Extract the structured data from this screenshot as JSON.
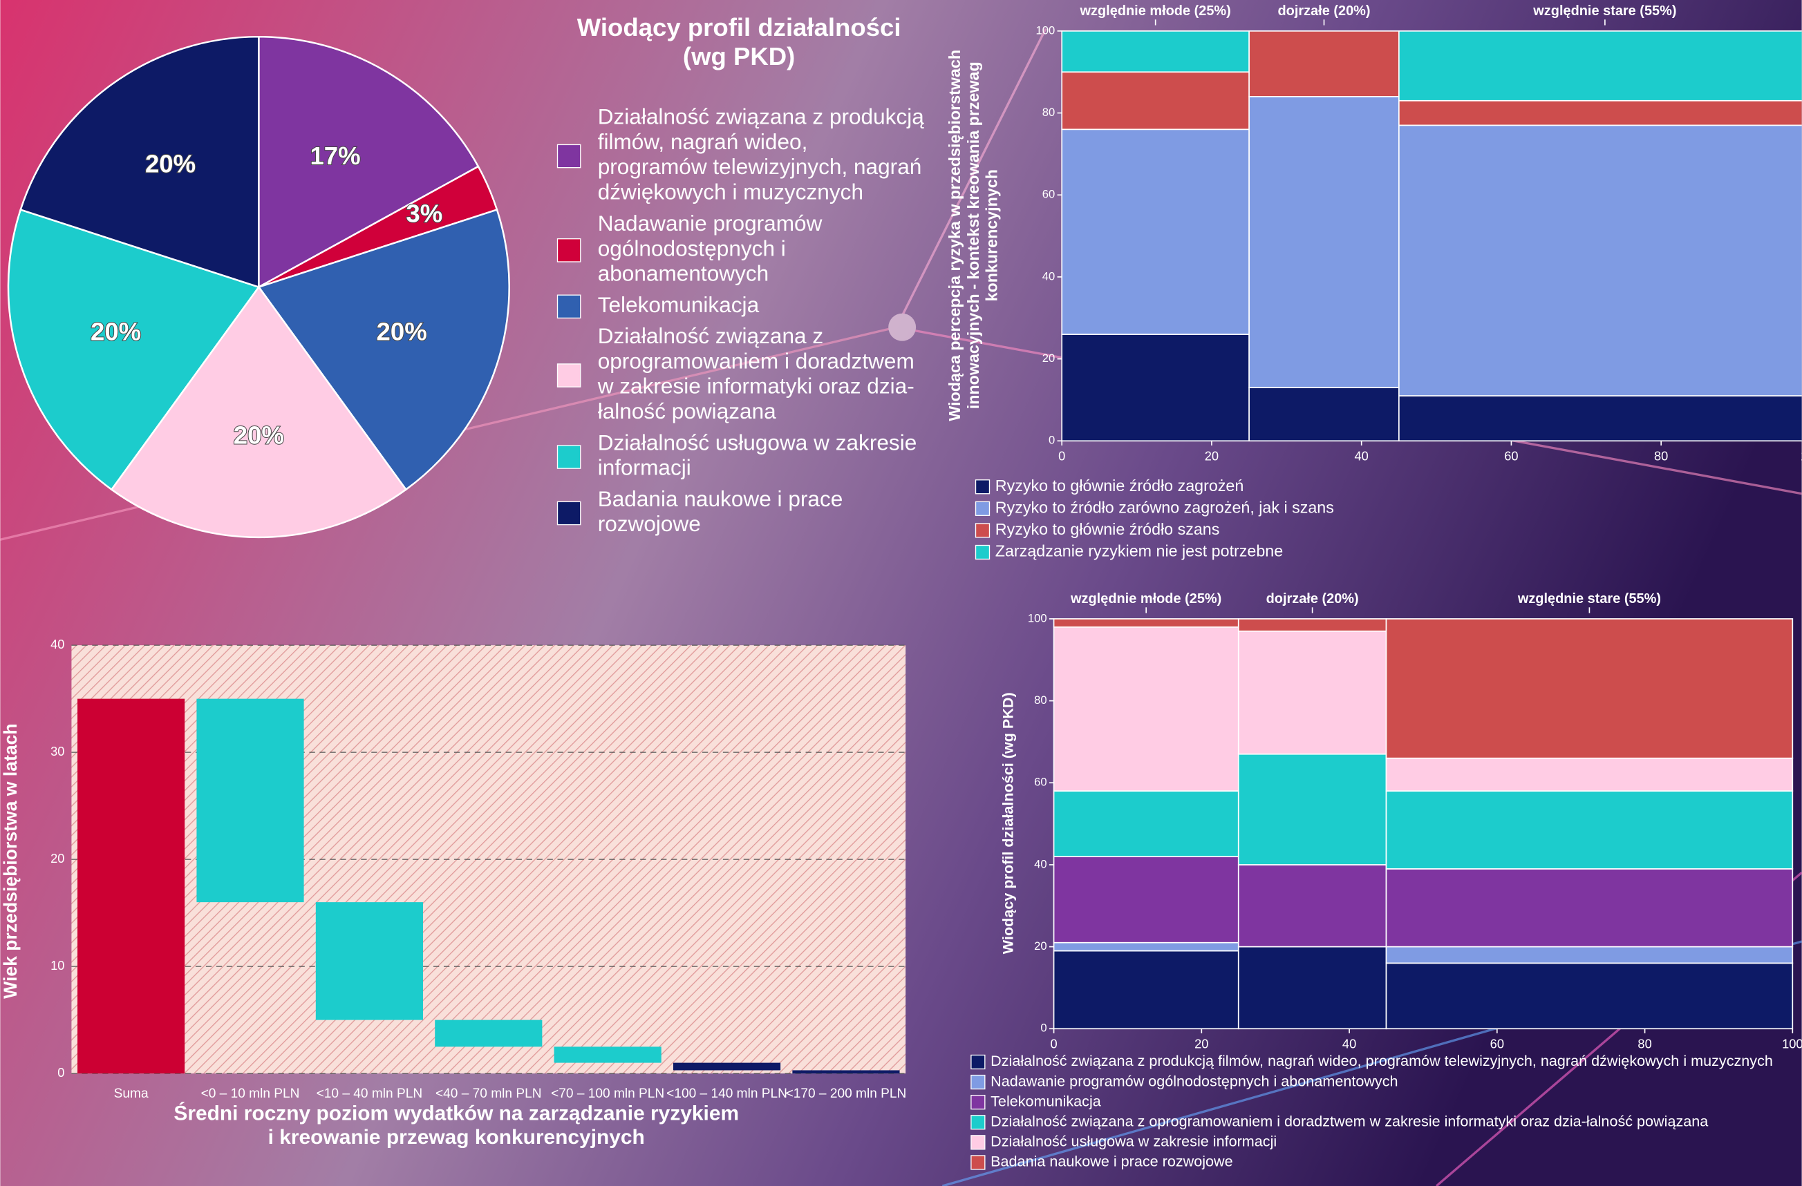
{
  "chart_data": [
    {
      "type": "pie",
      "title": "Wiodący profil działalności\n(wg PKD)",
      "categories": [
        "Działalność związana z produkcją\nfilmów, nagrań wideo,\nprogramów telewizyjnych, nagrań\ndźwiękowych i muzycznych",
        "Nadawanie programów\nogólnodostępnych i\nabonamentowych",
        "Telekomunikacja",
        "Działalność związana z\noprogramowaniem i doradztwem\nw zakresie informatyki oraz dzia-\nłalność powiązana",
        "Działalność usługowa w zakresie\ninformacji",
        "Badania naukowe i prace\nrozwojowe"
      ],
      "values": [
        17,
        3,
        20,
        20,
        20,
        20
      ],
      "value_labels": [
        "17%",
        "3%",
        "20%",
        "20%",
        "20%",
        "20%"
      ],
      "colors": [
        "#7f35a0",
        "#d0003a",
        "#3060b0",
        "#ffcce4",
        "#1ccccc",
        "#0d1a66"
      ]
    },
    {
      "type": "mosaic",
      "ylabel": "Wiodąca percepcja ryzyka w przedsiębiorstwach\ninnowacyjnych - kontekst kreowania przewag\nkonkurencyjnych",
      "categories": [
        "względnie młode (25%)",
        "dojrzałe (20%)",
        "względnie stare (55%)"
      ],
      "widths": [
        25,
        20,
        55
      ],
      "series": [
        {
          "name": "Ryzyko to głównie źródło zagrożeń",
          "color": "#0d1a66",
          "values": [
            26,
            13,
            11
          ]
        },
        {
          "name": "Ryzyko to źródło zarówno zagrożeń, jak i szans",
          "color": "#7f9be3",
          "values": [
            50,
            71,
            66
          ]
        },
        {
          "name": "Ryzyko to głównie źródło szans",
          "color": "#cd4d4d",
          "values": [
            14,
            16,
            6
          ]
        },
        {
          "name": "Zarządzanie ryzykiem nie jest potrzebne",
          "color": "#1ccccc",
          "values": [
            10,
            0,
            17
          ]
        }
      ],
      "xlim": [
        0,
        100
      ],
      "xticks": [
        0,
        20,
        40,
        60,
        80,
        100
      ],
      "ylim": [
        0,
        100
      ],
      "yticks": [
        0,
        20,
        40,
        60,
        80,
        100
      ]
    },
    {
      "type": "mosaic",
      "ylabel": "Wiodący profil działalności (wg PKD)",
      "categories": [
        "względnie młode (25%)",
        "dojrzałe (20%)",
        "względnie stare (55%)"
      ],
      "widths": [
        25,
        20,
        55
      ],
      "series": [
        {
          "name": "Działalność związana z produkcją filmów, nagrań wideo, programów telewizyjnych, nagrań dźwiękowych i muzycznych",
          "color": "#0d1a66",
          "values": [
            19,
            20,
            16
          ]
        },
        {
          "name": "Nadawanie programów ogólnodostępnych i abonamentowych",
          "color": "#7f9be3",
          "values": [
            2,
            0,
            4
          ]
        },
        {
          "name": "Telekomunikacja",
          "color": "#7f35a0",
          "values": [
            21,
            20,
            19
          ]
        },
        {
          "name": "Działalność związana z oprogramowaniem i doradztwem w zakresie informatyki oraz dzia-łalność powiązana",
          "color": "#1ccccc",
          "values": [
            16,
            27,
            19
          ]
        },
        {
          "name": "Działalność usługowa w zakresie informacji",
          "color": "#ffcce4",
          "values": [
            40,
            30,
            8
          ]
        },
        {
          "name": "Badania naukowe i prace rozwojowe",
          "color": "#cd4d4d",
          "values": [
            2,
            3,
            34
          ]
        }
      ],
      "xlim": [
        0,
        100
      ],
      "xticks": [
        0,
        20,
        40,
        60,
        80,
        100
      ],
      "ylim": [
        0,
        100
      ],
      "yticks": [
        0,
        20,
        40,
        60,
        80,
        100
      ]
    },
    {
      "type": "waterfall",
      "xlabel": "Średni roczny poziom wydatków na zarządzanie ryzykiem\ni kreowanie przewag konkurencyjnych",
      "ylabel": "Wiek przedsiębiorstwa w latach",
      "categories": [
        "Suma",
        "<0 – 10 mln PLN",
        "<10 – 40 mln PLN",
        "<40 – 70 mln PLN",
        "<70 – 100 mln PLN",
        "<100 – 140 mln PLN",
        "<170 – 200 mln PLN"
      ],
      "values": [
        35,
        -19,
        -11,
        -2.5,
        -1.5,
        -0.7,
        -0.3
      ],
      "colors": [
        "#cc0033",
        "#1ccccc",
        "#1ccccc",
        "#1ccccc",
        "#1ccccc",
        "#0d1a66",
        "#0d1a66"
      ],
      "ylim": [
        0,
        40
      ],
      "yticks": [
        0,
        10,
        20,
        30,
        40
      ],
      "grid": true
    }
  ]
}
